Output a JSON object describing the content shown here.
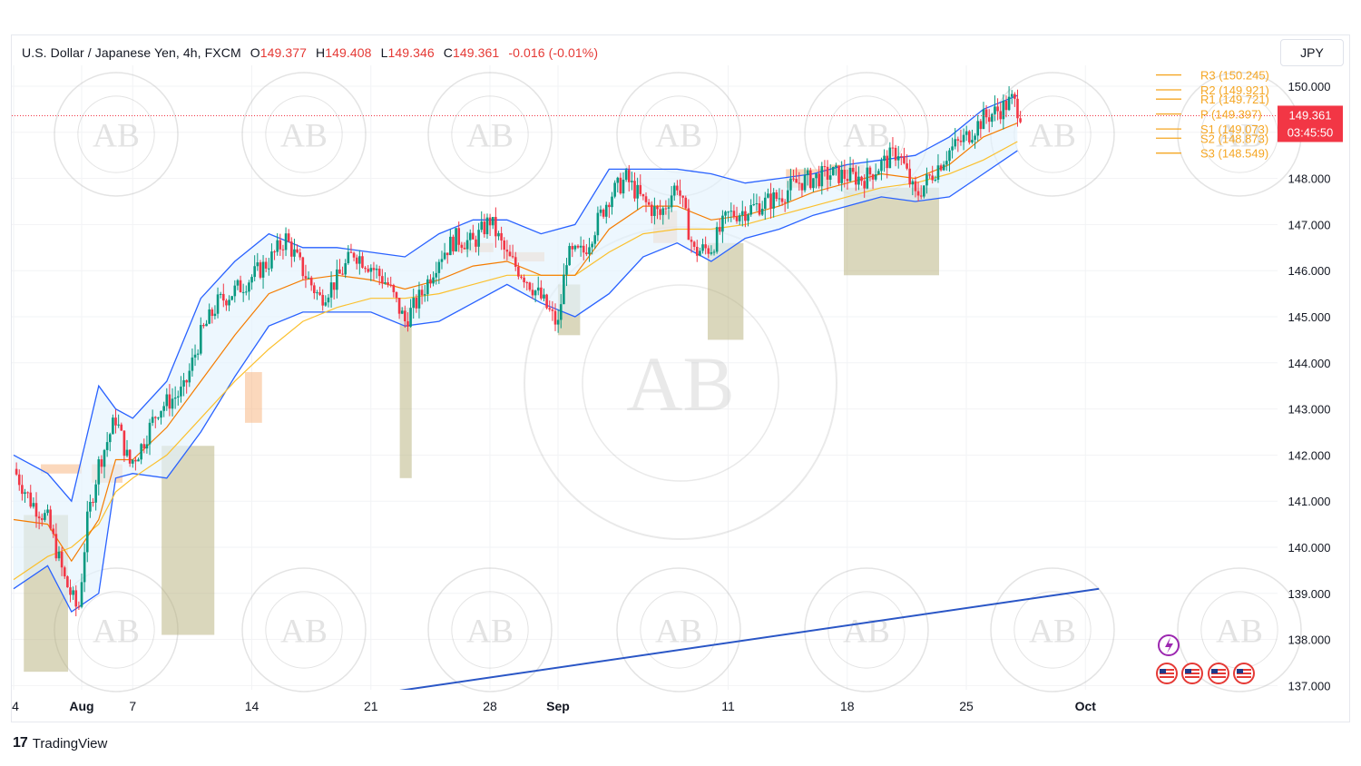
{
  "header": {
    "symbol": "U.S. Dollar / Japanese Yen, 4h, FXCM",
    "open_label": "O",
    "open": "149.377",
    "high_label": "H",
    "high": "149.408",
    "low_label": "L",
    "low": "149.346",
    "close_label": "C",
    "close": "149.361",
    "change": "-0.016 (-0.01%)"
  },
  "currency_button": "JPY",
  "price_badge": {
    "price": "149.361",
    "countdown": "03:45:50"
  },
  "footer": {
    "brand": "TradingView"
  },
  "watermark_text": "AB",
  "colors": {
    "candle_up": "#089981",
    "candle_down": "#f23645",
    "bollinger": "#2962ff",
    "bollinger_fill": "#e3f2fd",
    "ema_fast": "#f57c00",
    "ema_slow": "#fbc02d",
    "pivot": "#f5a623",
    "trendline": "#2a56c6",
    "badge": "#f23645"
  },
  "chart_data": {
    "type": "candlestick",
    "timeframe": "4h",
    "ylim": [
      136.8,
      150.8
    ],
    "y_ticks": [
      "150.000",
      "149.000",
      "148.000",
      "147.000",
      "146.000",
      "145.000",
      "144.000",
      "143.000",
      "142.000",
      "141.000",
      "140.000",
      "139.000",
      "138.000",
      "137.000"
    ],
    "x_ticks": [
      {
        "label": "4",
        "bold": false,
        "day": 0
      },
      {
        "label": "Aug",
        "bold": true,
        "day": 4
      },
      {
        "label": "7",
        "bold": false,
        "day": 7
      },
      {
        "label": "14",
        "bold": false,
        "day": 14
      },
      {
        "label": "21",
        "bold": false,
        "day": 21
      },
      {
        "label": "28",
        "bold": false,
        "day": 28
      },
      {
        "label": "Sep",
        "bold": true,
        "day": 32
      },
      {
        "label": "11",
        "bold": false,
        "day": 42
      },
      {
        "label": "18",
        "bold": false,
        "day": 49
      },
      {
        "label": "25",
        "bold": false,
        "day": 56
      },
      {
        "label": "Oct",
        "bold": true,
        "day": 63
      }
    ],
    "price_path": [
      [
        0,
        141.7
      ],
      [
        1,
        141.0
      ],
      [
        2,
        140.6
      ],
      [
        3,
        139.3
      ],
      [
        3.8,
        138.6
      ],
      [
        4.3,
        140.5
      ],
      [
        5,
        141.8
      ],
      [
        6,
        142.8
      ],
      [
        6.8,
        141.8
      ],
      [
        7.4,
        142.1
      ],
      [
        8.5,
        143.0
      ],
      [
        10,
        143.4
      ],
      [
        11,
        144.6
      ],
      [
        12,
        145.3
      ],
      [
        13.5,
        145.7
      ],
      [
        15,
        146.2
      ],
      [
        16,
        146.7
      ],
      [
        17,
        146.0
      ],
      [
        18,
        145.4
      ],
      [
        19,
        145.8
      ],
      [
        20,
        146.4
      ],
      [
        21,
        146.1
      ],
      [
        22,
        145.7
      ],
      [
        23,
        144.9
      ],
      [
        24,
        145.5
      ],
      [
        25,
        146.3
      ],
      [
        26,
        146.7
      ],
      [
        27,
        146.6
      ],
      [
        28,
        147.1
      ],
      [
        29,
        146.3
      ],
      [
        30,
        145.9
      ],
      [
        31,
        145.4
      ],
      [
        32,
        144.8
      ],
      [
        32.5,
        146.3
      ],
      [
        33.5,
        146.4
      ],
      [
        35,
        147.6
      ],
      [
        36,
        148.0
      ],
      [
        37,
        147.5
      ],
      [
        38,
        147.2
      ],
      [
        39,
        147.9
      ],
      [
        40,
        146.4
      ],
      [
        41,
        146.5
      ],
      [
        42,
        147.2
      ],
      [
        43,
        147.3
      ],
      [
        45,
        147.6
      ],
      [
        46,
        147.9
      ],
      [
        48,
        148.1
      ],
      [
        50,
        148.0
      ],
      [
        51,
        148.3
      ],
      [
        52,
        148.6
      ],
      [
        53,
        147.6
      ],
      [
        54,
        148.1
      ],
      [
        55,
        148.6
      ],
      [
        56,
        148.9
      ],
      [
        57,
        149.3
      ],
      [
        58,
        149.5
      ],
      [
        58.7,
        149.7
      ],
      [
        59.3,
        149.36
      ]
    ],
    "bollinger_upper": [
      [
        0,
        142.0
      ],
      [
        2,
        141.6
      ],
      [
        3.4,
        141.0
      ],
      [
        5,
        143.5
      ],
      [
        6,
        143.0
      ],
      [
        7,
        142.8
      ],
      [
        9,
        143.6
      ],
      [
        11,
        145.4
      ],
      [
        13,
        146.2
      ],
      [
        15,
        146.8
      ],
      [
        17,
        146.5
      ],
      [
        19,
        146.5
      ],
      [
        21,
        146.4
      ],
      [
        23,
        146.3
      ],
      [
        25,
        146.8
      ],
      [
        27,
        147.1
      ],
      [
        29,
        147.1
      ],
      [
        31,
        146.8
      ],
      [
        33,
        147.0
      ],
      [
        35,
        148.2
      ],
      [
        37,
        148.2
      ],
      [
        39,
        148.2
      ],
      [
        41,
        148.1
      ],
      [
        43,
        147.9
      ],
      [
        45,
        148.0
      ],
      [
        47,
        148.1
      ],
      [
        49,
        148.3
      ],
      [
        51,
        148.4
      ],
      [
        53,
        148.5
      ],
      [
        55,
        148.9
      ],
      [
        57,
        149.5
      ],
      [
        59,
        149.8
      ]
    ],
    "bollinger_lower": [
      [
        0,
        139.1
      ],
      [
        2,
        139.6
      ],
      [
        3.4,
        138.6
      ],
      [
        5,
        139.0
      ],
      [
        6,
        141.5
      ],
      [
        7,
        141.6
      ],
      [
        9,
        141.5
      ],
      [
        11,
        142.5
      ],
      [
        13,
        143.7
      ],
      [
        15,
        144.8
      ],
      [
        17,
        145.1
      ],
      [
        19,
        145.1
      ],
      [
        21,
        145.1
      ],
      [
        23,
        144.8
      ],
      [
        25,
        144.9
      ],
      [
        27,
        145.3
      ],
      [
        29,
        145.7
      ],
      [
        31,
        145.3
      ],
      [
        33,
        145.0
      ],
      [
        35,
        145.5
      ],
      [
        37,
        146.3
      ],
      [
        39,
        146.6
      ],
      [
        41,
        146.2
      ],
      [
        43,
        146.7
      ],
      [
        45,
        146.9
      ],
      [
        47,
        147.2
      ],
      [
        49,
        147.4
      ],
      [
        51,
        147.6
      ],
      [
        53,
        147.5
      ],
      [
        55,
        147.6
      ],
      [
        57,
        148.1
      ],
      [
        59,
        148.6
      ]
    ],
    "ema_fast": [
      [
        0,
        140.6
      ],
      [
        2,
        140.5
      ],
      [
        3.4,
        139.7
      ],
      [
        5,
        140.6
      ],
      [
        6,
        141.9
      ],
      [
        7,
        141.9
      ],
      [
        9,
        142.6
      ],
      [
        11,
        143.6
      ],
      [
        13,
        144.6
      ],
      [
        15,
        145.5
      ],
      [
        17,
        145.8
      ],
      [
        19,
        145.9
      ],
      [
        21,
        145.8
      ],
      [
        23,
        145.6
      ],
      [
        25,
        145.8
      ],
      [
        27,
        146.1
      ],
      [
        29,
        146.2
      ],
      [
        31,
        145.9
      ],
      [
        33,
        145.9
      ],
      [
        35,
        146.9
      ],
      [
        37,
        147.4
      ],
      [
        39,
        147.4
      ],
      [
        41,
        147.1
      ],
      [
        43,
        147.2
      ],
      [
        45,
        147.4
      ],
      [
        47,
        147.7
      ],
      [
        49,
        147.9
      ],
      [
        51,
        148.1
      ],
      [
        53,
        148.0
      ],
      [
        55,
        148.3
      ],
      [
        57,
        148.9
      ],
      [
        59,
        149.2
      ]
    ],
    "ema_slow": [
      [
        0,
        139.3
      ],
      [
        2,
        139.8
      ],
      [
        3.4,
        140.0
      ],
      [
        5,
        140.5
      ],
      [
        6,
        141.2
      ],
      [
        7,
        141.5
      ],
      [
        9,
        142.0
      ],
      [
        11,
        142.8
      ],
      [
        13,
        143.6
      ],
      [
        15,
        144.3
      ],
      [
        17,
        144.9
      ],
      [
        19,
        145.2
      ],
      [
        21,
        145.4
      ],
      [
        23,
        145.4
      ],
      [
        25,
        145.5
      ],
      [
        27,
        145.7
      ],
      [
        29,
        145.9
      ],
      [
        31,
        145.9
      ],
      [
        33,
        145.9
      ],
      [
        35,
        146.4
      ],
      [
        37,
        146.8
      ],
      [
        39,
        146.9
      ],
      [
        41,
        146.9
      ],
      [
        43,
        147.0
      ],
      [
        45,
        147.2
      ],
      [
        47,
        147.4
      ],
      [
        49,
        147.6
      ],
      [
        51,
        147.8
      ],
      [
        53,
        147.9
      ],
      [
        55,
        148.1
      ],
      [
        57,
        148.4
      ],
      [
        59,
        148.8
      ]
    ],
    "pivots": [
      {
        "label": "R3",
        "value": 150.245,
        "text": "R3 (150.245)"
      },
      {
        "label": "R2",
        "value": 149.921,
        "text": "R2 (149.921)"
      },
      {
        "label": "R1",
        "value": 149.721,
        "text": "R1 (149.721)"
      },
      {
        "label": "P",
        "value": 149.397,
        "text": "P (149.397)"
      },
      {
        "label": "S1",
        "value": 149.073,
        "text": "S1 (149.073)"
      },
      {
        "label": "S2",
        "value": 148.873,
        "text": "S2 (148.873)"
      },
      {
        "label": "S3",
        "value": 148.549,
        "text": "S3 (148.549)"
      }
    ],
    "trendline": [
      [
        21.0,
        136.8
      ],
      [
        63.8,
        139.1
      ]
    ],
    "zones_green": [
      [
        0.6,
        3.2,
        137.3,
        140.7
      ],
      [
        8.7,
        11.8,
        138.1,
        142.2
      ],
      [
        22.7,
        23.4,
        141.5,
        145.2
      ],
      [
        32.0,
        33.3,
        144.6,
        145.7
      ],
      [
        40.8,
        42.9,
        144.5,
        146.6
      ],
      [
        48.8,
        54.4,
        145.9,
        147.8
      ]
    ],
    "zones_orange": [
      [
        1.6,
        4.0,
        141.6,
        141.8
      ],
      [
        4.6,
        6.4,
        141.4,
        141.8
      ],
      [
        13.6,
        14.6,
        142.7,
        143.8
      ],
      [
        25.8,
        28.2,
        146.4,
        146.6
      ],
      [
        28.8,
        31.2,
        146.2,
        146.4
      ],
      [
        37.6,
        39.0,
        146.6,
        147.3
      ],
      [
        45.4,
        48.0,
        147.8,
        148.2
      ],
      [
        48.0,
        50.0,
        148.1,
        148.3
      ]
    ],
    "current_price": 149.361
  }
}
